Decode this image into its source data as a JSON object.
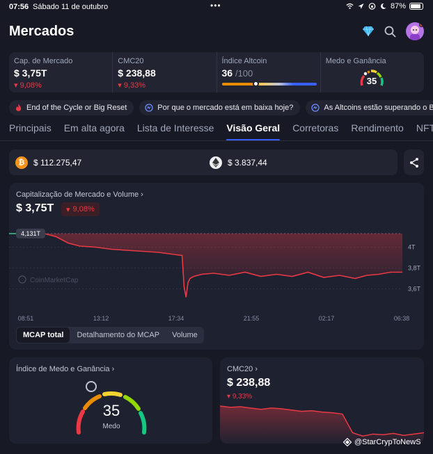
{
  "status_bar": {
    "time": "07:56",
    "date": "Sábado 11 de outubro",
    "battery": "87%"
  },
  "header": {
    "title": "Mercados"
  },
  "stats": [
    {
      "label": "Cap. de Mercado",
      "value": "$ 3,75T",
      "change": "9,08%"
    },
    {
      "label": "CMC20",
      "value": "$ 238,88",
      "change": "9,33%"
    },
    {
      "label": "Índice Altcoin",
      "value": "36",
      "sub": "/100",
      "level": 0.36
    },
    {
      "label": "Medo e Ganância",
      "value": "35",
      "level": 0.35
    }
  ],
  "news_pills": [
    {
      "text": "End of the Cycle or Big Reset",
      "icon": "fire-icon"
    },
    {
      "text": "Por que o mercado está em baixa hoje?",
      "icon": "ai-icon"
    },
    {
      "text": "As Altcoins estão superando o Bitcoin",
      "icon": "ai-icon"
    }
  ],
  "tabs": [
    "Principais",
    "Em alta agora",
    "Lista de Interesse",
    "Visão Geral",
    "Corretoras",
    "Rendimento",
    "NFT"
  ],
  "active_tab": "Visão Geral",
  "prices": {
    "btc": "$ 112.275,47",
    "eth": "$ 3.837,44"
  },
  "market_chart": {
    "label": "Capitalização de Mercado e Volume",
    "value": "$ 3,75T",
    "change": "9,08%",
    "watermark": "CoinMarketCap",
    "segments": [
      "MCAP total",
      "Detalhamento do MCAP",
      "Volume"
    ],
    "active_segment": "MCAP total"
  },
  "chart_data": {
    "type": "line",
    "title": "Capitalização de Mercado e Volume",
    "x_ticks": [
      "08:51",
      "13:12",
      "17:34",
      "21:55",
      "02:17",
      "06:38"
    ],
    "y_ticks": [
      "4T",
      "3,8T",
      "3,6T"
    ],
    "ylim": [
      3.45,
      4.25
    ],
    "reference_label": "4,131T",
    "reference_value": 4.131,
    "series": [
      {
        "x": [
          0,
          0.03,
          0.06,
          0.09,
          0.12,
          0.15,
          0.18,
          0.22,
          0.26,
          0.3,
          0.34,
          0.38,
          0.42,
          0.44,
          0.445,
          0.45,
          0.455,
          0.46,
          0.47,
          0.49,
          0.52,
          0.56,
          0.6,
          0.64,
          0.68,
          0.72,
          0.76,
          0.8,
          0.84,
          0.88,
          0.91,
          0.94,
          0.97,
          1.0
        ],
        "values": [
          4.13,
          4.13,
          4.14,
          4.13,
          4.1,
          4.04,
          4.01,
          4.0,
          3.98,
          3.97,
          3.96,
          3.95,
          3.93,
          3.92,
          3.62,
          3.52,
          3.66,
          3.7,
          3.72,
          3.74,
          3.75,
          3.73,
          3.76,
          3.72,
          3.74,
          3.72,
          3.76,
          3.71,
          3.73,
          3.7,
          3.73,
          3.74,
          3.76,
          3.76
        ]
      }
    ]
  },
  "fear_greed": {
    "label": "Índice de Medo e Ganância",
    "value": "35",
    "status": "Medo",
    "level": 0.35
  },
  "cmc20": {
    "label": "CMC20",
    "value": "$ 238,88",
    "change": "9,33%",
    "spark": [
      1.0,
      0.98,
      0.99,
      0.97,
      0.95,
      0.97,
      0.96,
      0.94,
      0.92,
      0.93,
      0.91,
      0.9,
      0.88,
      0.6,
      0.55,
      0.58,
      0.57,
      0.59,
      0.56,
      0.58,
      0.6
    ]
  },
  "watermark": "@StarCrypToNewS",
  "colors": {
    "accent": "#3861fb",
    "down": "#ea3943",
    "up": "#16c784",
    "bg": "#171924",
    "card": "#222531"
  }
}
